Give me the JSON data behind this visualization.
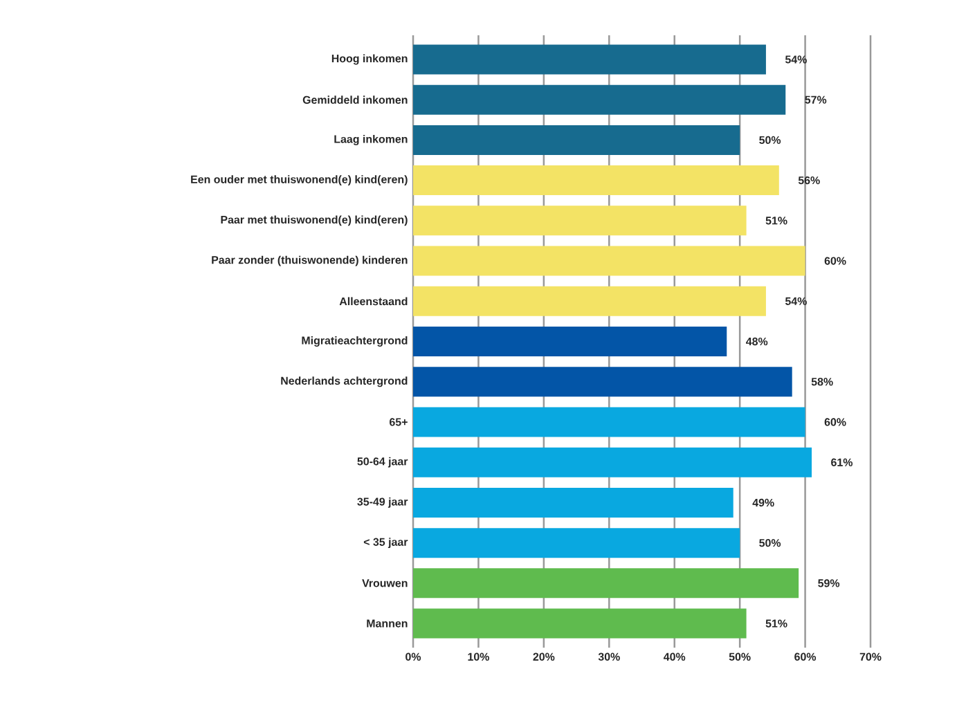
{
  "chart_data": {
    "type": "bar",
    "orientation": "horizontal",
    "categories": [
      "Hoog inkomen",
      "Gemiddeld inkomen",
      "Laag inkomen",
      "Een ouder met thuiswonend(e) kind(eren)",
      "Paar met thuiswonend(e) kind(eren)",
      "Paar zonder (thuiswonende) kinderen",
      "Alleenstaand",
      "Migratieachtergrond",
      "Nederlands achtergrond",
      "65+",
      "50-64 jaar",
      "35-49 jaar",
      "< 35 jaar",
      "Vrouwen",
      "Mannen"
    ],
    "values": [
      54,
      57,
      50,
      56,
      51,
      60,
      54,
      48,
      58,
      60,
      61,
      49,
      50,
      59,
      51
    ],
    "value_labels": [
      "54%",
      "57%",
      "50%",
      "56%",
      "51%",
      "60%",
      "54%",
      "48%",
      "58%",
      "60%",
      "61%",
      "49%",
      "50%",
      "59%",
      "51%"
    ],
    "colors": [
      "#176b8f",
      "#176b8f",
      "#176b8f",
      "#f3e365",
      "#f3e365",
      "#f3e365",
      "#f3e365",
      "#0355a7",
      "#0355a7",
      "#09a8e0",
      "#09a8e0",
      "#09a8e0",
      "#09a8e0",
      "#5fbb4e",
      "#5fbb4e"
    ],
    "xlim": [
      0,
      70
    ],
    "xticks": [
      {
        "value": 0,
        "label": "0%"
      },
      {
        "value": 10,
        "label": "10%"
      },
      {
        "value": 20,
        "label": "20%"
      },
      {
        "value": 30,
        "label": "30%"
      },
      {
        "value": 40,
        "label": "40%"
      },
      {
        "value": 50,
        "label": "50%"
      },
      {
        "value": 60,
        "label": "60%"
      },
      {
        "value": 70,
        "label": "70%"
      }
    ],
    "grid": "x"
  }
}
